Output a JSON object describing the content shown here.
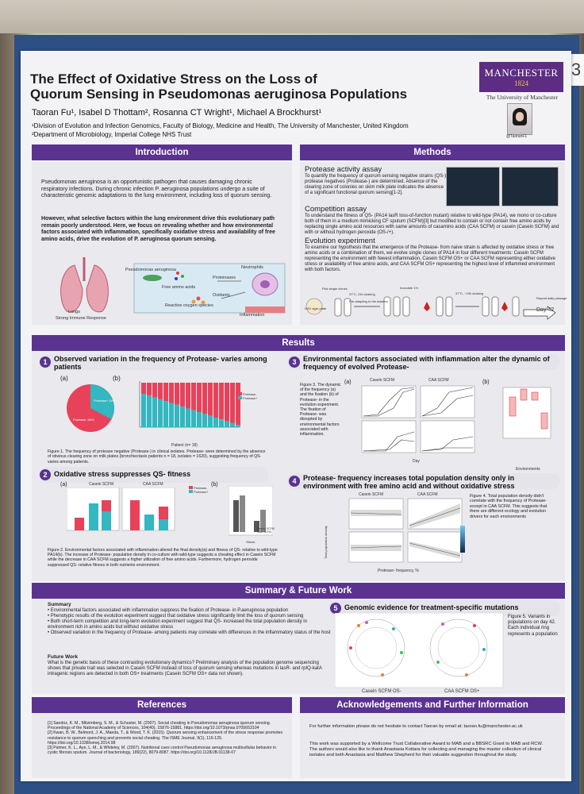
{
  "poster": {
    "title_line1": "The Effect of Oxidative Stress on the Loss of",
    "title_line2": "Quorum Sensing in Pseudomonas aeruginosa Populations",
    "authors": "Taoran Fu¹, Isabel D Thottam², Rosanna CT Wright¹, Michael A Brockhurst¹",
    "affil1": "¹Division of Evolution and Infection Genomics, Faculty of Biology, Medicine and Health, The University of Manchester, United Kingdom",
    "affil2": "²Department of Microbiology, Imperial College NHS Trust",
    "logo_name": "MANCHESTER",
    "logo_year": "1824",
    "university": "The University of Manchester",
    "twitter": "@TaoranF1",
    "board_number": "3"
  },
  "intro": {
    "header": "Introduction",
    "p1": "Pseudomonas aeruginosa is an opportunistic pathogen that causes damaging chronic respiratory infections. During chronic infection P. aeruginosa populations undergo a suite of characteristic genomic adaptations to the lung environment, including loss of quorum sensing.",
    "p2": "However, what selective factors within the lung environment drive this evolutionary path remain poorly understood. Here, we focus on revealing whether and how environmental factors associated with inflammation, specifically oxidative stress and availability of free amino acids, drive the evolution of P. aeruginosa quorum sensing.",
    "fig_labels": [
      "Pseudomonas aeruginosa",
      "Free amino acids",
      "Proteinases",
      "Neutrophils",
      "Reactive oxygen species",
      "Oxidants",
      "Inflammation",
      "Lungs",
      "Strong Immune Response"
    ]
  },
  "methods": {
    "header": "Methods",
    "s1_title": "Protease activity assay",
    "s1_text": "To quantify the frequency of quorum sensing negative strains (QS-), protease negatives (Protease-) are determined. Absence of the clearing zone of colonies on skim milk plate indicates the absence of a significant functional quorum sensing[1-2].",
    "s2_title": "Competition assay",
    "s2_text": "To understand the fitness of QS- (PA14 lasR loss-of-function mutant) relative to wild-type (PA14), we mono or co-culture both of them in a medium mimicking CF sputum (SCFM)[3] but modified to contain or not contain free amino acids by replacing single amino acid resources with same amounts of casamino acids (CAA SCFM) or casein (Casein SCFM) and with or without hydrogen peroxide (OS-/+).",
    "s3_title": "Evolution experiment",
    "s3_text": "To examine our hypothesis that the emergence of the Protease- from naive strain is affected by oxidative stress or free amino acids or a combination of them, we evolve single clones of PA14 in four different treatments: Casein SCFM representing the environment with fewest inflammation, Casein SCFM OS+ or CAA SCFM representing either oxidative stress or availability of free amino acids, and CAA SCFM OS+ representing the highest level of inflammed environment with both factors.",
    "flow_end": "Day 42",
    "flow_labels": [
      "H2O agar plate",
      "Pick single clones",
      "37°C, 24h shaking",
      "Pre-adapting to the isolates",
      "Inoculate 1%",
      "37°C, ~24h shaking",
      "Repeat daily passage"
    ]
  },
  "results": {
    "header": "Results",
    "r1": {
      "num": "1",
      "title": "Observed variation in the frequency of Protease- varies among patients",
      "label_a": "(a)",
      "label_b": "(b)",
      "pie_labels": [
        "Protease+ 34%",
        "Protease- 66%"
      ],
      "caption": "Figure 1. The frequency of protease negative (Protease-) in clinical isolates. Protease- were determined by the absence of obvious clearing zone on milk plates (bronchiectasis patients n = 18, isolates = 1620), suggesting frequency of QS- varies among patients.",
      "xlabel": "Patient (n= 18)",
      "legend": [
        "Protease-",
        "Protease+"
      ]
    },
    "r2": {
      "num": "2",
      "title": "Oxidative stress suppresses QS- fitness",
      "label_a": "(a)",
      "label_b": "(b)",
      "panels": [
        "Casein SCFM",
        "CAA SCFM"
      ],
      "legend": [
        "Protease-",
        "Protease+"
      ],
      "legend_b": [
        "Casein SCFM",
        "CAA SCFM"
      ],
      "xlabel_b": "Stress",
      "caption": "Figure 2. Environmental factors associated with inflammation altered the final density(a) and fitness of QS- relative to wild-type PA14(b). The increase of Protease- population density in co-culture with wild-type suggests a cheating effect in Casein SCFM while the decrease in CAA SCFM suggests a higher utilization of free amino acids. Furthermore, hydrogen peroxide suppressed QS- relative fitness in both nutrients environment."
    },
    "r3": {
      "num": "3",
      "title": "Environmental factors associated with inflammation alter the dynamic of frequency of evolved Protease-",
      "desc": "Figure 3. The dynamic of the frequency (a) and the fixation (b) of Protease- in the evolution experiment. The fixation of Protease- was disrupted by environmental factors associated with inflammation.",
      "label_a": "(a)",
      "label_b": "(b)",
      "panels": [
        "Casein SCFM",
        "CAA SCFM"
      ],
      "xlabel": "Day",
      "xlabel_b": "Environments"
    },
    "r4": {
      "num": "4",
      "title": "Protease- frequency increases total population density only in environment with free amino acid and without oxidative stress",
      "desc": "Figure 4. Total population density didn't correlate with the frequency of Protease- except in CAA SCFM. This suggests that there are different ecology and evolution drivers for each environments",
      "panels": [
        "Casein SCFM",
        "CAA SCFM"
      ],
      "xlabel": "Protease- frequency, %",
      "ylabel": "Total population density"
    }
  },
  "summary": {
    "header": "Summary & Future Work",
    "summary_title": "Summary",
    "bullets": [
      "• Environmental factors associated with inflammation suppress the fixation of Protease- in P.aeruginosa population",
      "• Phenotypic results of the evolution experiment suggest that oxidative stress significantly limit the loss of quorum sensing",
      "• Both short-term competition and long-term evolution experiment suggest that QS- increased the total population density in environment rich in amino acids but without oxidative stress",
      "• Observed variation in the frequency of Protease- among patients may correlate with differences in the inflammatory status of the host"
    ],
    "future_title": "Future Work",
    "future_text": "What is the genetic basis of these contrasting evolutionary dynamics? Preliminary analysis of the population genome sequencing shows that private trait was selected in Casein SCFM instead of loss of quorum sensing whereas mutations in lasR- and rpIQ-katA intragenic regions are detected in both OS+ treatments (Casein SCFM OS+ data not shown)."
  },
  "r5": {
    "num": "5",
    "title": "Genomic evidence for treatment-specific mutations",
    "desc": "Figure 5. Variants in populations on day 42. Each individual ring represents a population",
    "labels": [
      "Casein SCFM OS-",
      "CAA SCFM OS+"
    ]
  },
  "references": {
    "header": "References",
    "items": [
      "[1] Sandoz, K. M., Mitzimberg, S. M., & Schuster, M. (2007). Social cheating in Pseudomonas aeruginosa quorum sensing. Proceedings of the National Academy of Sciences, 104(40), 15876-15881. https://doi.org/10.1073/pnas.0705653104",
      "[2] Kwan, B. W., Belmont, J. A., Maeda, T., & Wood, T. K. (2015). Quorum sensing enhancement of the stress response promotes resistance to quorum quenching and prevents social cheating. The ISME Journal, 9(1), 115-125. https://doi.org/10.1038/ismej.2014.98",
      "[3] Palmer, K. L., Aye, L. M., & Whiteley, M. (2007). Nutritional cues control Pseudomonas aeruginosa multicellular behavior in cystic fibrosis sputum. Journal of bacteriology, 189(22), 8079-8087. https://doi.org/10.1128/JB.01138-07"
    ]
  },
  "ack": {
    "header": "Acknowledgements and Further Information",
    "p1": "For further information please do not hesitate to contact Taoran by email at: taoran.fu@manchester.ac.uk",
    "p2": "This work was supported by a Wellcome Trust Collaborative Award to MAB and a BBSRC Grant to MAB and RCW. The authors would also like to thank Anastasia Kottara for collecting and managing the master collection of clinical isolates and both Anastasia and Matthew Shepherd for their valuable suggestion throughout the study."
  },
  "colors": {
    "purple": "#5a3290",
    "protease_pos": "#33b7c0",
    "protease_neg": "#e8425a"
  }
}
